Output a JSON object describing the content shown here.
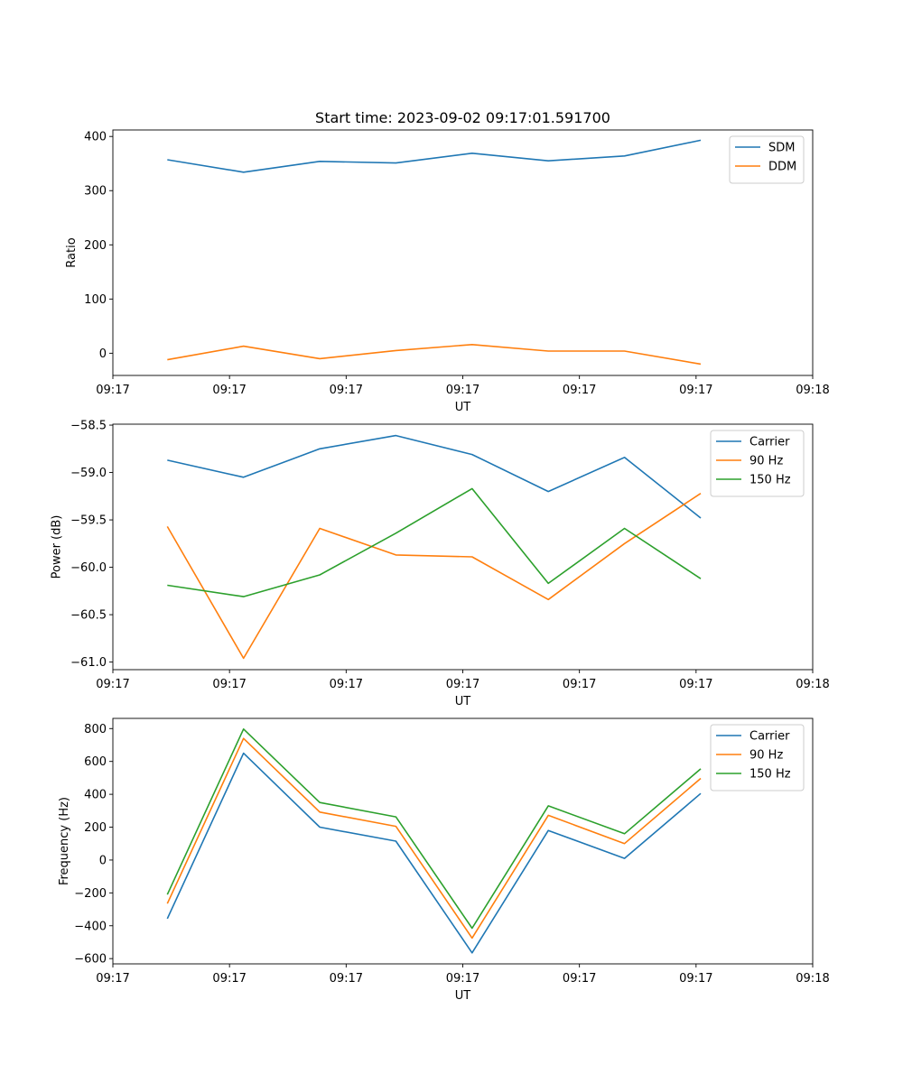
{
  "chart_data": [
    {
      "type": "line",
      "title": "Start time: 2023-09-02 09:17:01.591700",
      "xlabel": "UT",
      "ylabel": "Ratio",
      "xlim": [
        0,
        9
      ],
      "ylim": [
        -41,
        412
      ],
      "x_ticks": [
        0,
        1.5,
        3,
        4.5,
        6,
        7.5,
        9
      ],
      "x_tick_labels": [
        "09:17",
        "09:17",
        "09:17",
        "09:17",
        "09:17",
        "09:17",
        "09:18"
      ],
      "y_ticks": [
        0,
        100,
        200,
        300,
        400
      ],
      "y_tick_labels": [
        "0",
        "100",
        "200",
        "300",
        "400"
      ],
      "legend_position": "top-right",
      "x": [
        0.7,
        1.68,
        2.66,
        3.64,
        4.62,
        5.6,
        6.58,
        7.56
      ],
      "series": [
        {
          "name": "SDM",
          "color": "#1f77b4",
          "values": [
            357,
            334,
            354,
            351,
            369,
            355,
            364,
            393
          ]
        },
        {
          "name": "DDM",
          "color": "#ff7f0e",
          "values": [
            -12,
            13,
            -10,
            5,
            16,
            4,
            4,
            -20
          ]
        }
      ]
    },
    {
      "type": "line",
      "title": "",
      "xlabel": "UT",
      "ylabel": "Power (dB)",
      "xlim": [
        0,
        9
      ],
      "ylim": [
        -61.08,
        -58.49
      ],
      "x_ticks": [
        0,
        1.5,
        3,
        4.5,
        6,
        7.5,
        9
      ],
      "x_tick_labels": [
        "09:17",
        "09:17",
        "09:17",
        "09:17",
        "09:17",
        "09:17",
        "09:18"
      ],
      "y_ticks": [
        -61.0,
        -60.5,
        -60.0,
        -59.5,
        -59.0,
        -58.5
      ],
      "y_tick_labels": [
        "−61.0",
        "−60.5",
        "−60.0",
        "−59.5",
        "−59.0",
        "−58.5"
      ],
      "legend_position": "top-right",
      "x": [
        0.7,
        1.68,
        2.66,
        3.64,
        4.62,
        5.6,
        6.58,
        7.56
      ],
      "series": [
        {
          "name": "Carrier",
          "color": "#1f77b4",
          "values": [
            -58.87,
            -59.05,
            -58.75,
            -58.61,
            -58.81,
            -59.2,
            -58.84,
            -59.48
          ]
        },
        {
          "name": "90 Hz",
          "color": "#ff7f0e",
          "values": [
            -59.57,
            -60.96,
            -59.59,
            -59.87,
            -59.89,
            -60.34,
            -59.75,
            -59.22
          ]
        },
        {
          "name": "150 Hz",
          "color": "#2ca02c",
          "values": [
            -60.19,
            -60.31,
            -60.08,
            -59.64,
            -59.17,
            -60.17,
            -59.59,
            -60.12
          ]
        }
      ]
    },
    {
      "type": "line",
      "title": "",
      "xlabel": "UT",
      "ylabel": "Frequency (Hz)",
      "xlim": [
        0,
        9
      ],
      "ylim": [
        -632,
        862
      ],
      "x_ticks": [
        0,
        1.5,
        3,
        4.5,
        6,
        7.5,
        9
      ],
      "x_tick_labels": [
        "09:17",
        "09:17",
        "09:17",
        "09:17",
        "09:17",
        "09:17",
        "09:18"
      ],
      "y_ticks": [
        -600,
        -400,
        -200,
        0,
        200,
        400,
        600,
        800
      ],
      "y_tick_labels": [
        "−600",
        "−400",
        "−200",
        "0",
        "200",
        "400",
        "600",
        "800"
      ],
      "legend_position": "top-right",
      "x": [
        0.7,
        1.68,
        2.66,
        3.64,
        4.62,
        5.6,
        6.58,
        7.56
      ],
      "series": [
        {
          "name": "Carrier",
          "color": "#1f77b4",
          "values": [
            -357,
            650,
            200,
            115,
            -565,
            180,
            10,
            405
          ]
        },
        {
          "name": "90 Hz",
          "color": "#ff7f0e",
          "values": [
            -265,
            740,
            292,
            205,
            -475,
            272,
            100,
            497
          ]
        },
        {
          "name": "150 Hz",
          "color": "#2ca02c",
          "values": [
            -210,
            797,
            350,
            263,
            -415,
            330,
            160,
            555
          ]
        }
      ]
    }
  ]
}
